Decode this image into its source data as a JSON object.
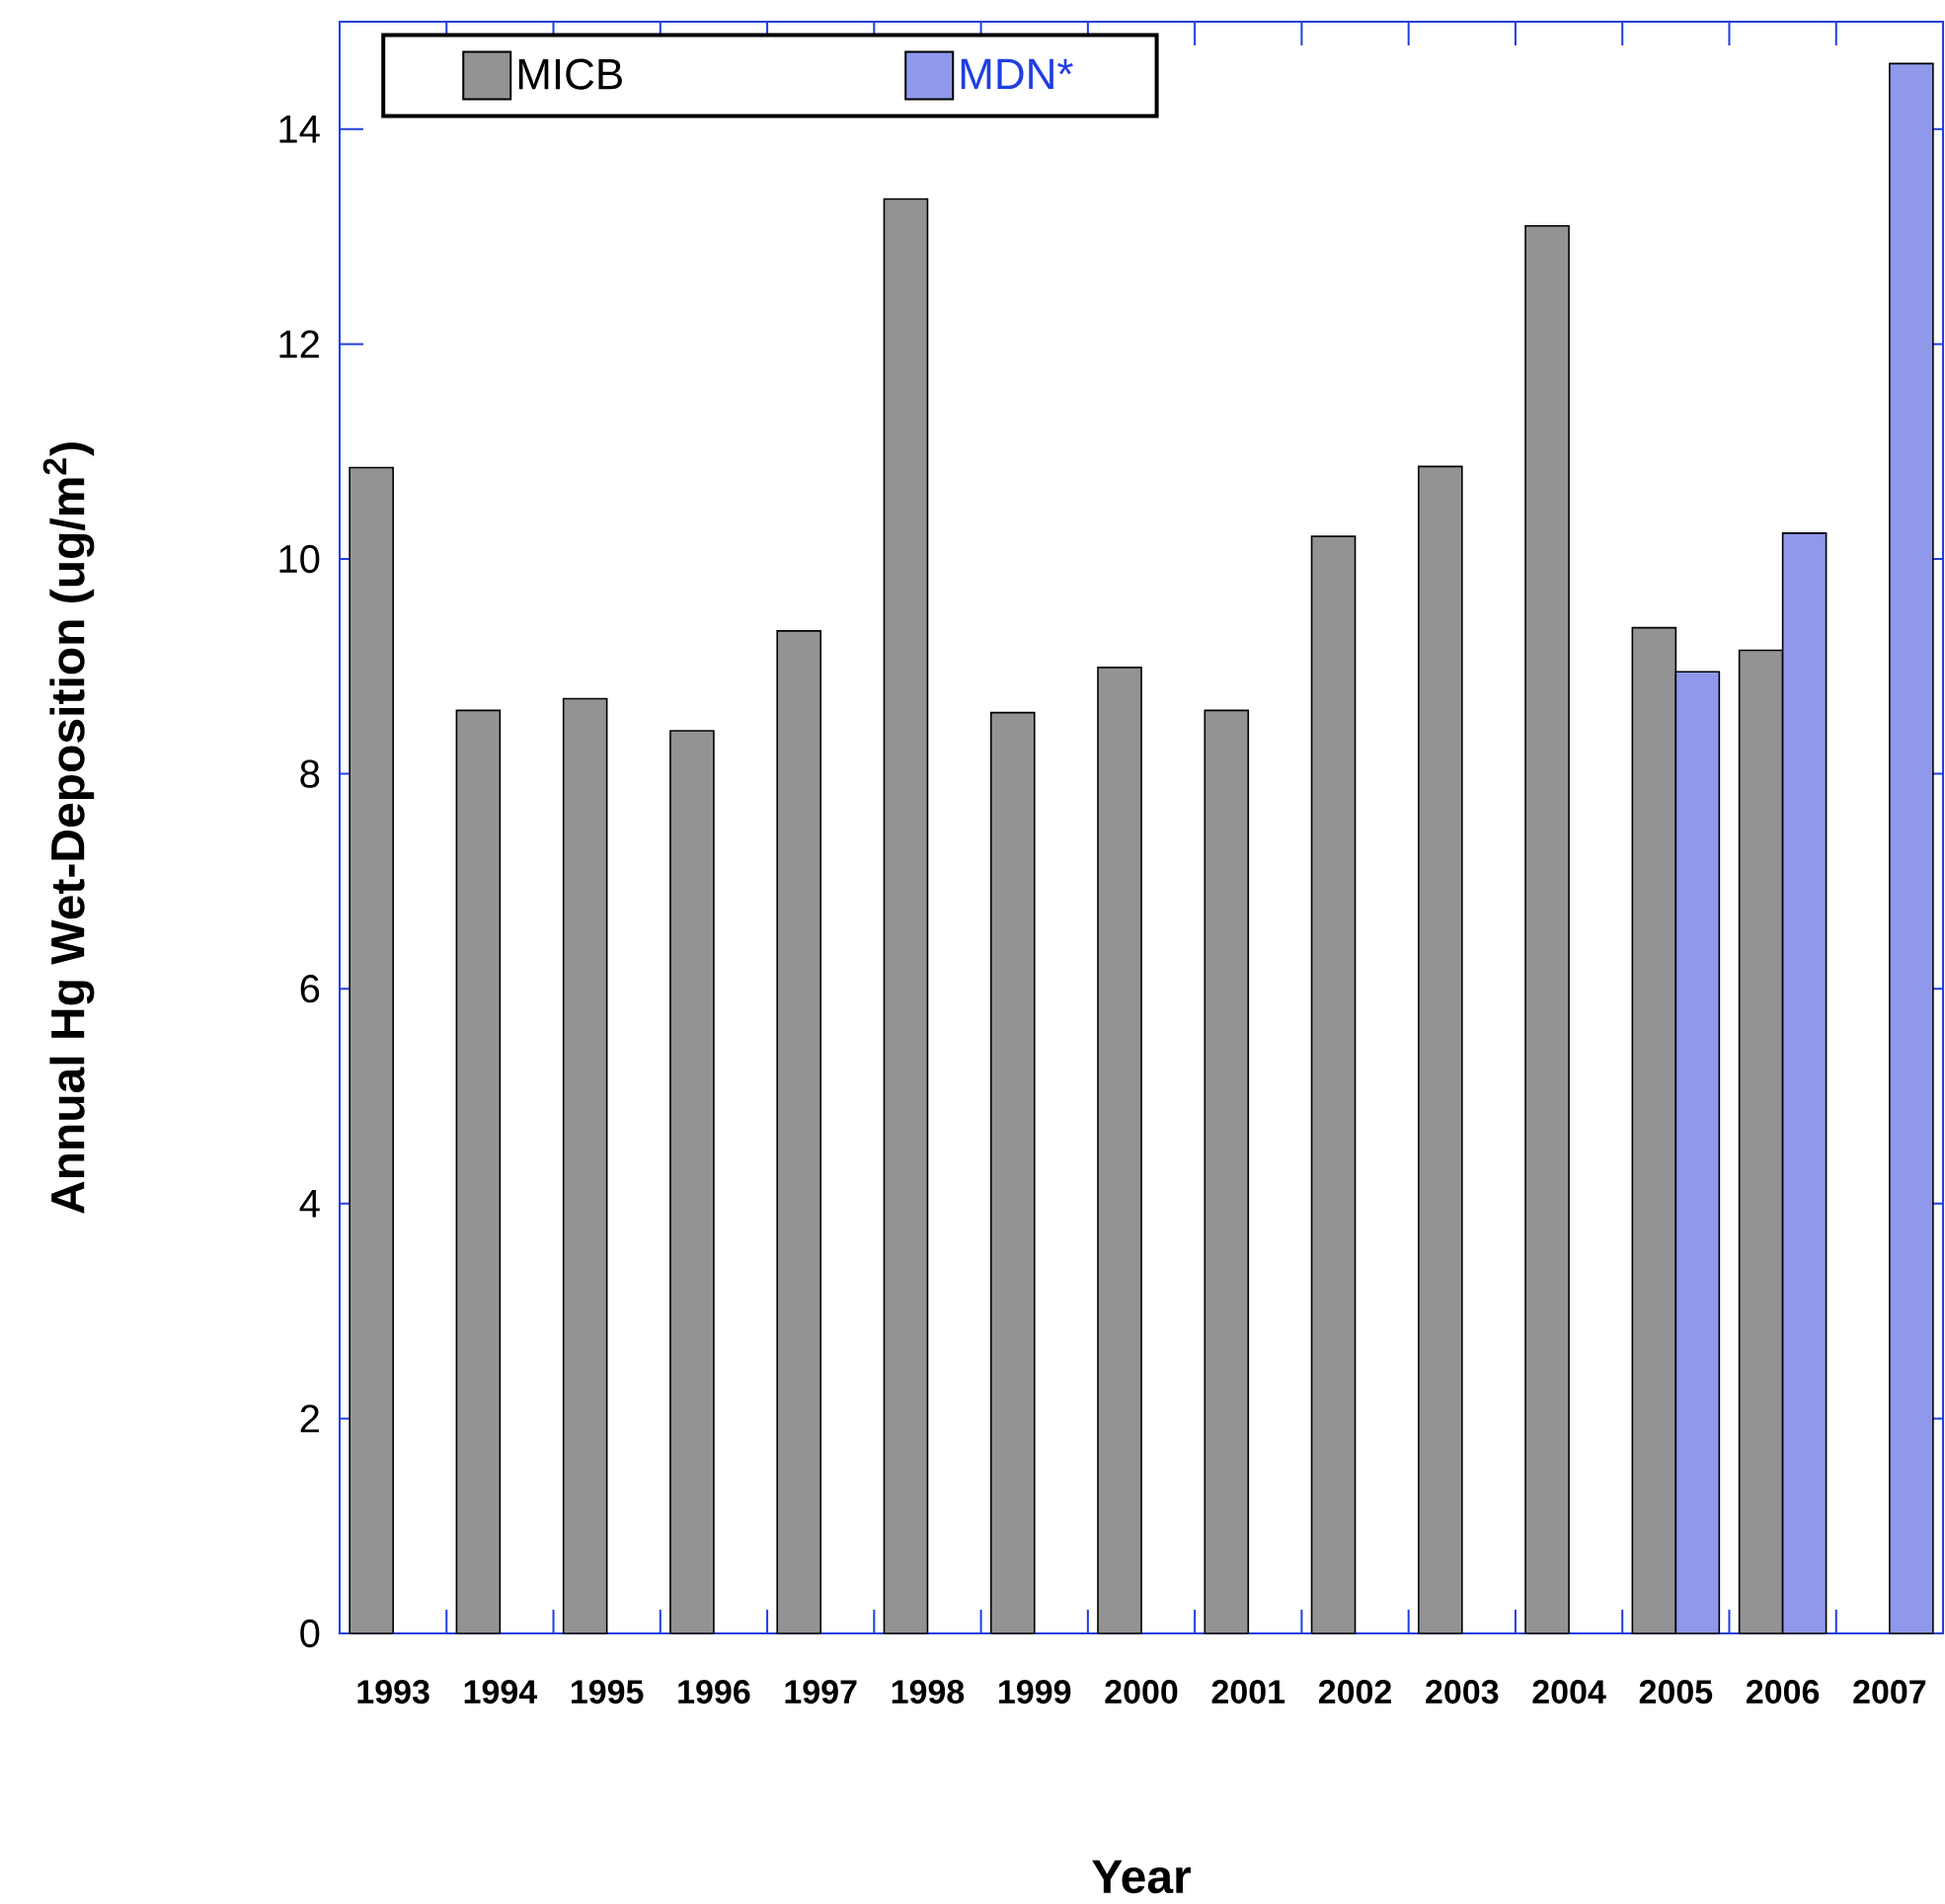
{
  "chart_data": {
    "type": "bar",
    "xlabel": "Year",
    "ylabel": "Annual Hg Wet-Deposition (ug/m$^{2}$)",
    "categories": [
      "1993",
      "1994",
      "1995",
      "1996",
      "1997",
      "1998",
      "1999",
      "2000",
      "2001",
      "2002",
      "2003",
      "2004",
      "2005",
      "2006",
      "2007"
    ],
    "series": [
      {
        "name": "MICB",
        "color": "#939393",
        "values": [
          10.85,
          8.59,
          8.7,
          8.4,
          9.33,
          13.35,
          8.57,
          8.99,
          8.59,
          10.21,
          10.86,
          13.1,
          9.36,
          9.15,
          null
        ]
      },
      {
        "name": "MDN*",
        "color": "#9098ec",
        "values": [
          null,
          null,
          null,
          null,
          null,
          null,
          null,
          null,
          null,
          null,
          null,
          null,
          8.95,
          10.24,
          14.61
        ]
      }
    ],
    "ylim": [
      0,
      15
    ],
    "yticks": [
      0,
      2,
      4,
      6,
      8,
      10,
      12,
      14
    ],
    "legend": "top left"
  }
}
